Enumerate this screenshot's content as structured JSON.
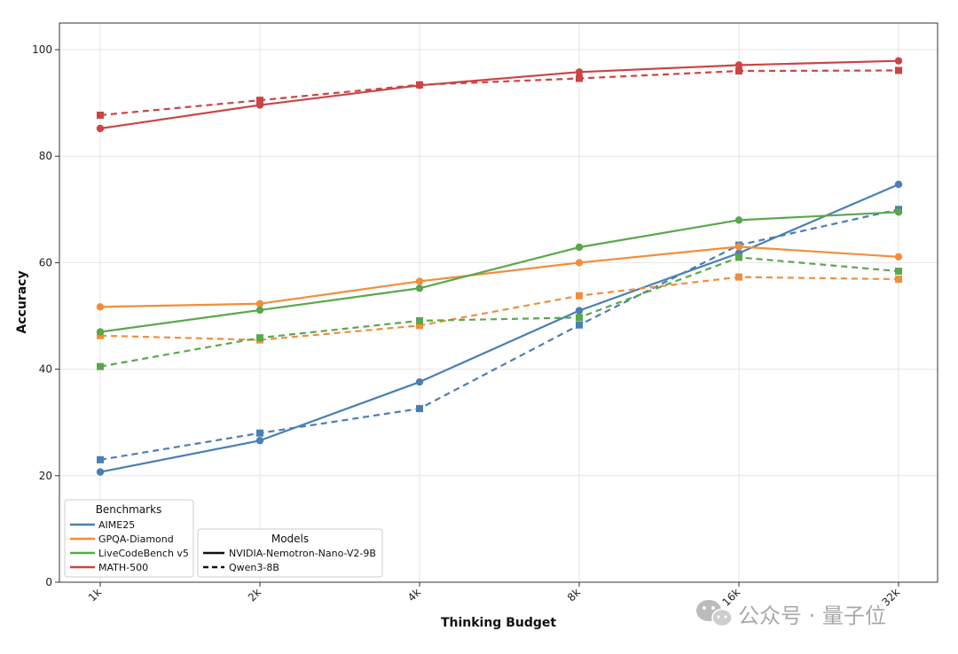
{
  "chart_data": {
    "type": "line",
    "xlabel": "Thinking Budget",
    "ylabel": "Accuracy",
    "categories": [
      "1k",
      "2k",
      "4k",
      "8k",
      "16k",
      "32k"
    ],
    "ylim": [
      0,
      105
    ],
    "yticks": [
      0,
      20,
      40,
      60,
      80,
      100
    ],
    "grid": true,
    "series": [
      {
        "name": "AIME25",
        "model": "NVIDIA-Nemotron-Nano-V2-9B",
        "color": "#4a7fb5",
        "style": "solid",
        "marker": "circle",
        "values": [
          20.7,
          26.6,
          37.6,
          51.0,
          61.8,
          74.7
        ]
      },
      {
        "name": "AIME25",
        "model": "Qwen3-8B",
        "color": "#4a7fb5",
        "style": "dashed",
        "marker": "square",
        "values": [
          23.0,
          28.0,
          32.6,
          48.3,
          63.3,
          70.0
        ]
      },
      {
        "name": "GPQA-Diamond",
        "model": "NVIDIA-Nemotron-Nano-V2-9B",
        "color": "#f28e3b",
        "style": "solid",
        "marker": "circle",
        "values": [
          51.7,
          52.3,
          56.5,
          60.0,
          63.0,
          61.1
        ]
      },
      {
        "name": "GPQA-Diamond",
        "model": "Qwen3-8B",
        "color": "#f28e3b",
        "style": "dashed",
        "marker": "square",
        "values": [
          46.3,
          45.5,
          48.2,
          53.8,
          57.3,
          56.9
        ]
      },
      {
        "name": "LiveCodeBench v5",
        "model": "NVIDIA-Nemotron-Nano-V2-9B",
        "color": "#59a84b",
        "style": "solid",
        "marker": "circle",
        "values": [
          47.0,
          51.1,
          55.2,
          62.9,
          68.0,
          69.5
        ]
      },
      {
        "name": "LiveCodeBench v5",
        "model": "Qwen3-8B",
        "color": "#59a84b",
        "style": "dashed",
        "marker": "square",
        "values": [
          40.5,
          45.9,
          49.1,
          49.7,
          61.0,
          58.4
        ]
      },
      {
        "name": "MATH-500",
        "model": "NVIDIA-Nemotron-Nano-V2-9B",
        "color": "#cc4444",
        "style": "solid",
        "marker": "circle",
        "values": [
          85.2,
          89.6,
          93.3,
          95.8,
          97.1,
          97.9
        ]
      },
      {
        "name": "MATH-500",
        "model": "Qwen3-8B",
        "color": "#cc4444",
        "style": "dashed",
        "marker": "square",
        "values": [
          87.7,
          90.5,
          93.4,
          94.6,
          96.0,
          96.1
        ]
      }
    ],
    "legends": [
      {
        "title": "Benchmarks",
        "placement": "lower-left",
        "entries": [
          {
            "label": "AIME25",
            "color": "#4a7fb5",
            "style": "solid"
          },
          {
            "label": "GPQA-Diamond",
            "color": "#f28e3b",
            "style": "solid"
          },
          {
            "label": "LiveCodeBench v5",
            "color": "#59a84b",
            "style": "solid"
          },
          {
            "label": "MATH-500",
            "color": "#cc4444",
            "style": "solid"
          }
        ]
      },
      {
        "title": "Models",
        "placement": "lower-left",
        "entries": [
          {
            "label": "NVIDIA-Nemotron-Nano-V2-9B",
            "color": "#111111",
            "style": "solid"
          },
          {
            "label": "Qwen3-8B",
            "color": "#111111",
            "style": "dashed"
          }
        ]
      }
    ]
  },
  "watermark": {
    "text": "公众号 · 量子位",
    "icon": "wechat-icon"
  }
}
